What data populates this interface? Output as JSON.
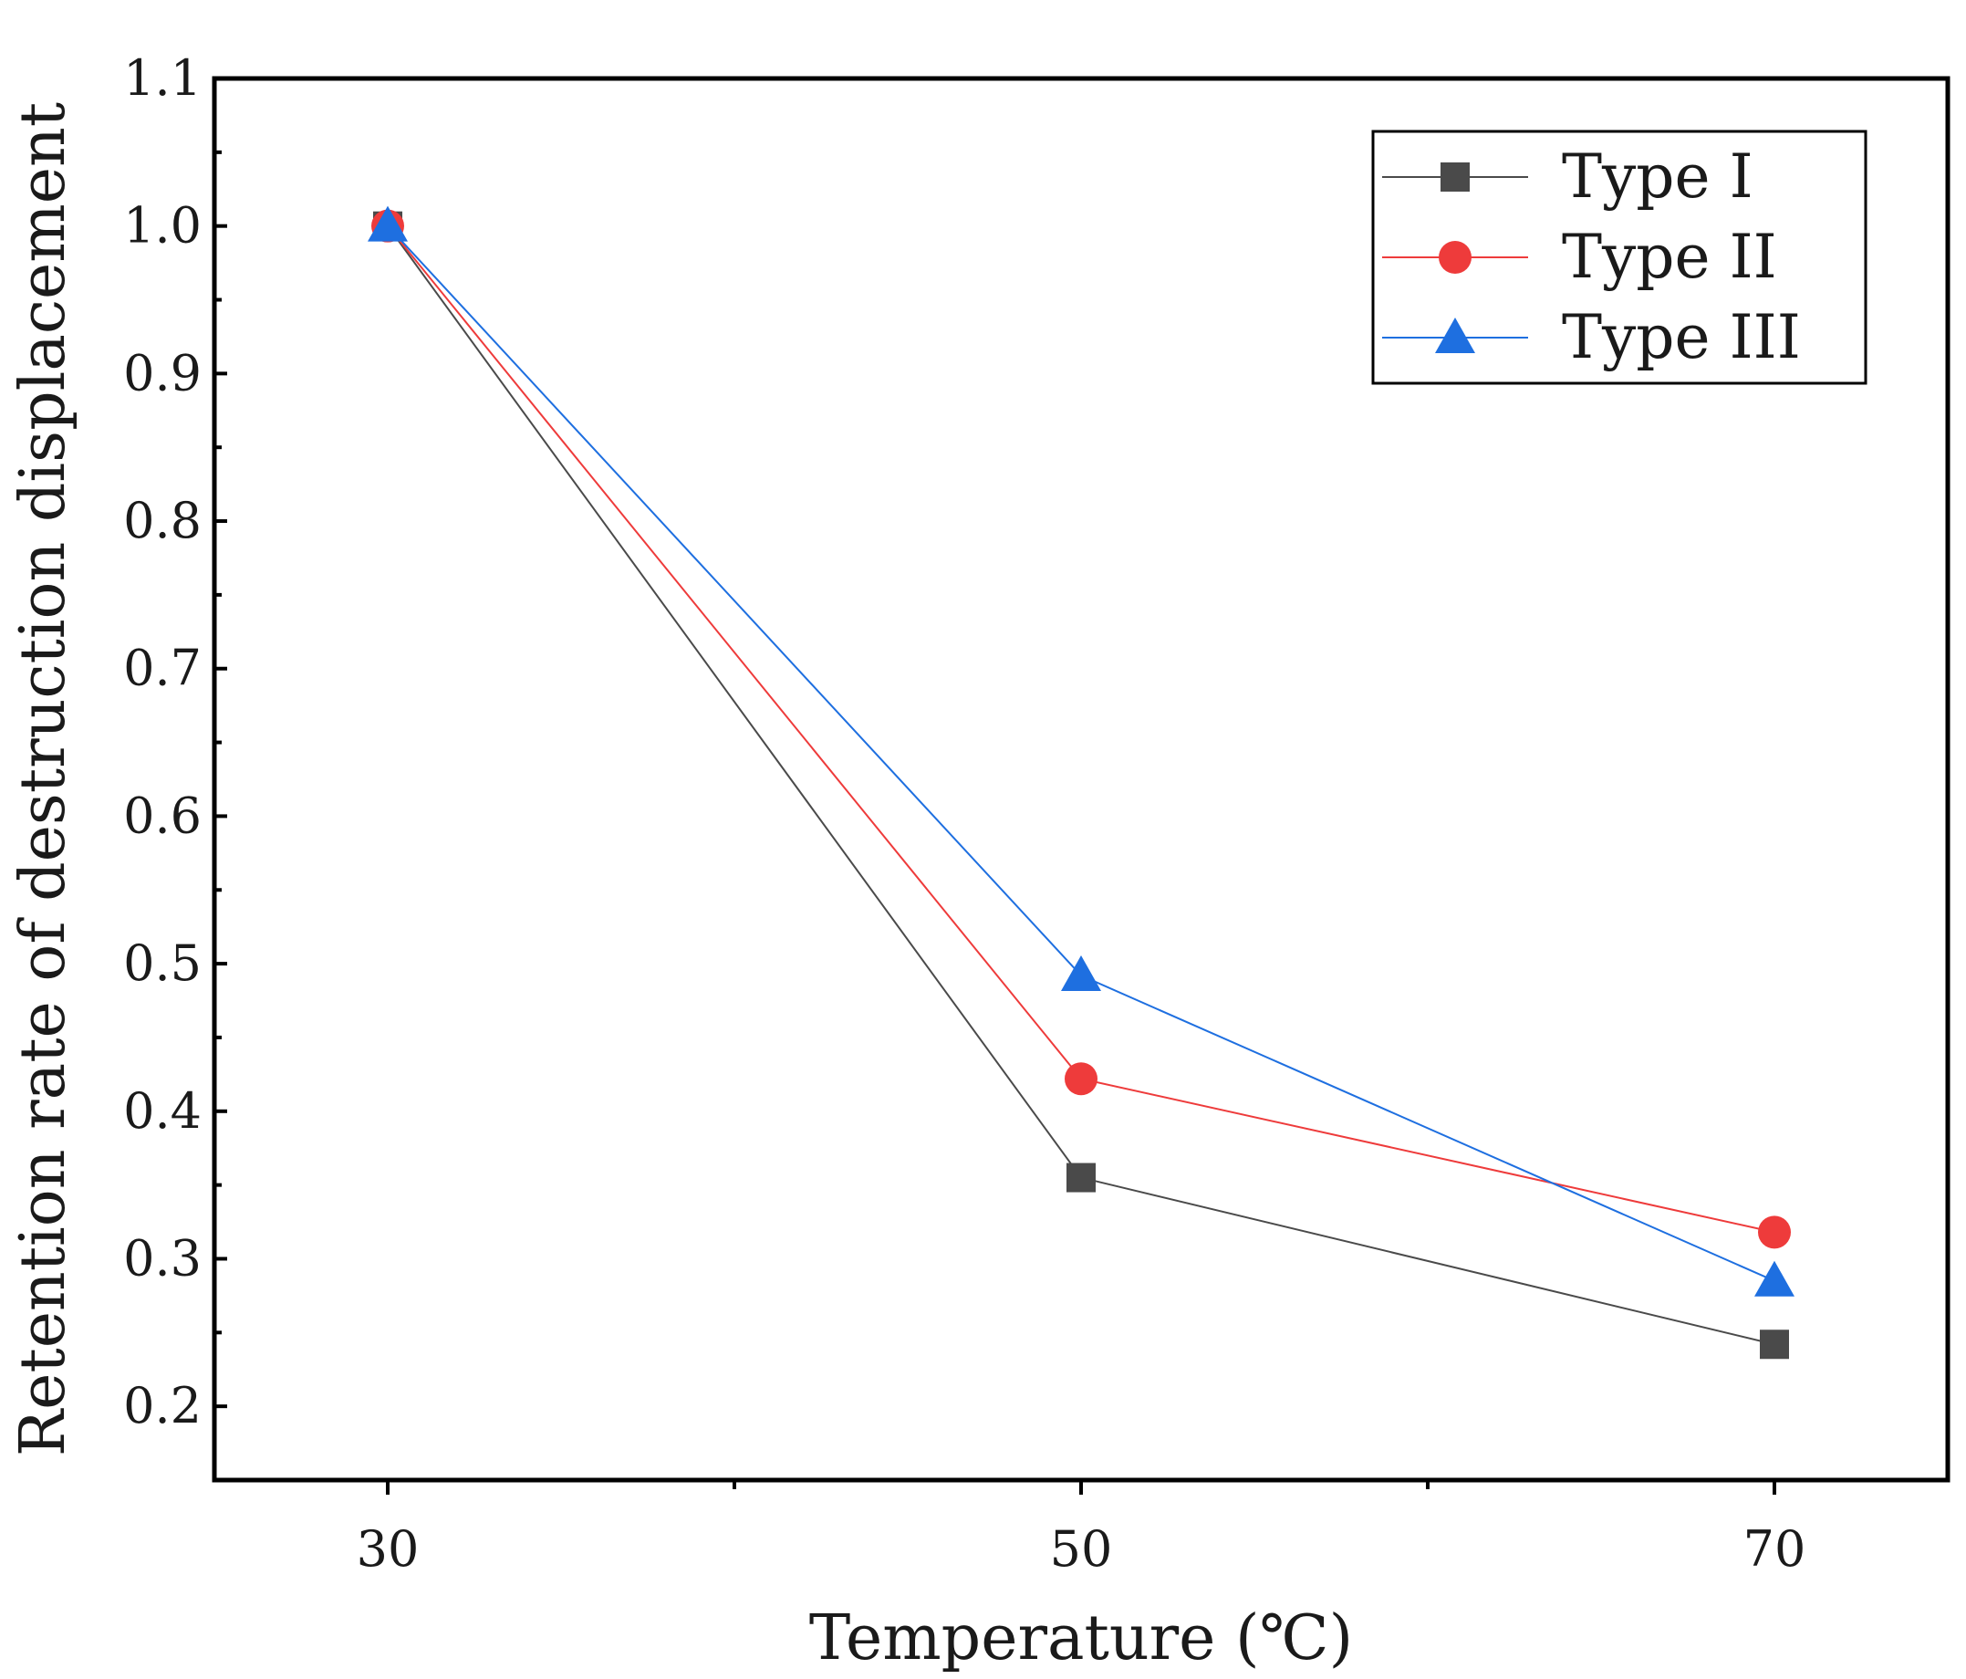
{
  "chart_data": {
    "type": "line",
    "title": "",
    "xlabel": "Temperature (℃)",
    "ylabel": "Retention rate of destruction displacement",
    "x": [
      30,
      50,
      70
    ],
    "x_tick_labels": [
      "30",
      "50",
      "70"
    ],
    "xlim": [
      25,
      75
    ],
    "ylim": [
      0.15,
      1.1
    ],
    "y_ticks": [
      0.2,
      0.3,
      0.4,
      0.5,
      0.6,
      0.7,
      0.8,
      0.9,
      1.0,
      1.1
    ],
    "y_tick_labels": [
      "0.2",
      "0.3",
      "0.4",
      "0.5",
      "0.6",
      "0.7",
      "0.8",
      "0.9",
      "1.0",
      "1.1"
    ],
    "grid": false,
    "legend_position": "top-right",
    "series": [
      {
        "name": "Type I",
        "marker": "square",
        "color": "#4a4a4a",
        "values": [
          1.0,
          0.355,
          0.242
        ]
      },
      {
        "name": "Type II",
        "marker": "circle",
        "color": "#ee3b3b",
        "values": [
          1.0,
          0.422,
          0.318
        ]
      },
      {
        "name": "Type III",
        "marker": "triangle",
        "color": "#1e6fe0",
        "values": [
          1.0,
          0.492,
          0.285
        ]
      }
    ]
  }
}
